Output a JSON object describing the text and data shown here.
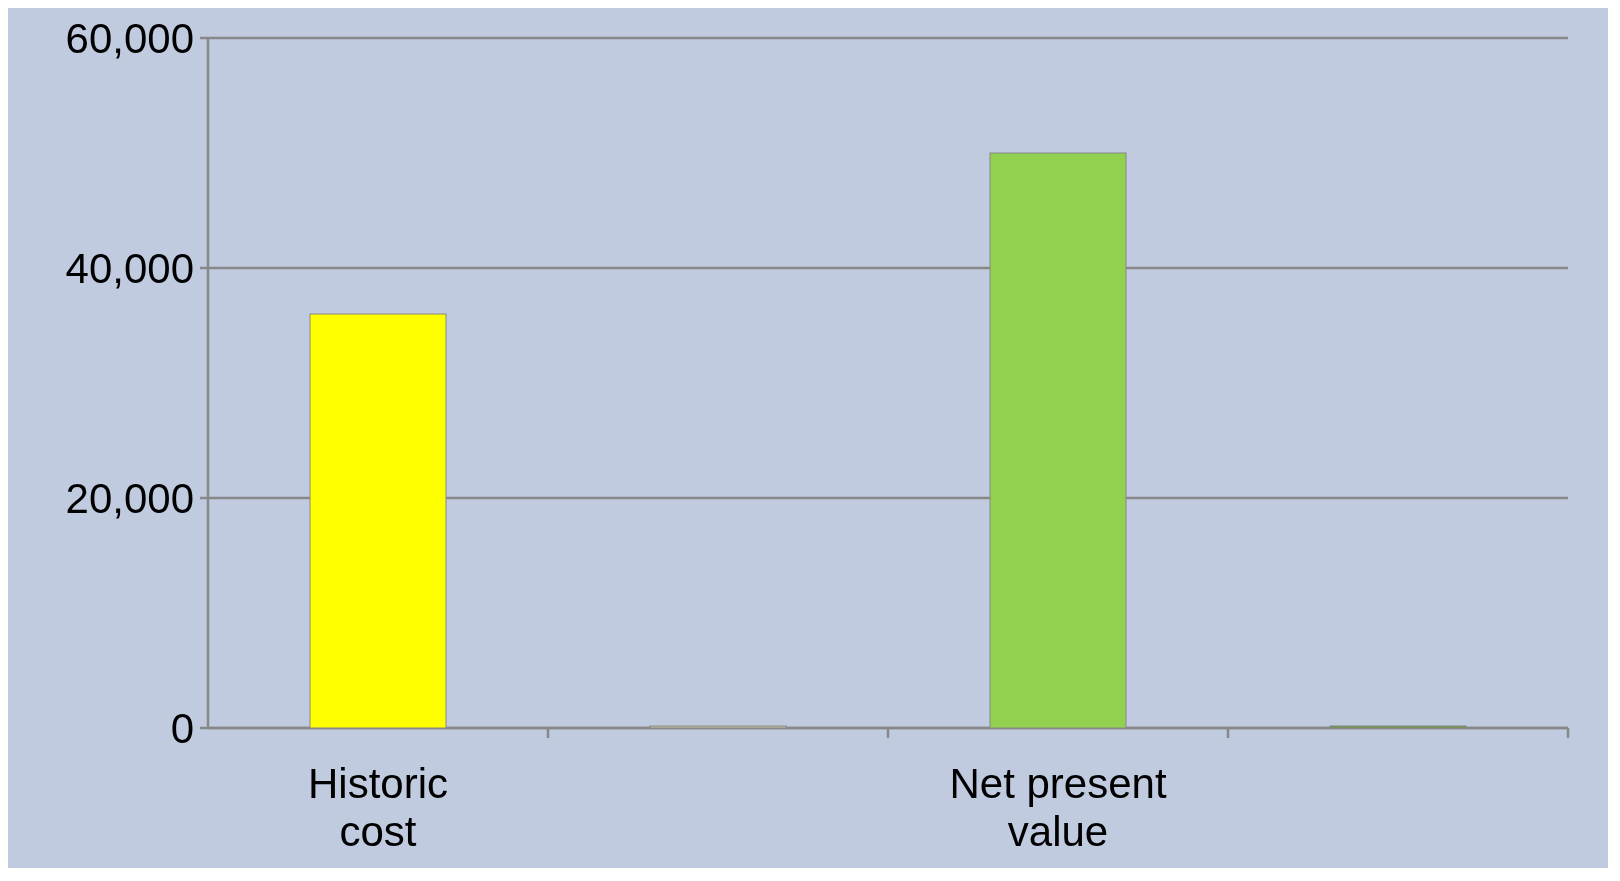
{
  "chart_data": {
    "type": "bar",
    "categories": [
      "Historic cost",
      null,
      "Net present value",
      null
    ],
    "values": [
      36000,
      0,
      50000,
      0
    ],
    "colors": [
      "#ffff00",
      "#c4c49e",
      "#92d050",
      "#6a9a3a"
    ],
    "ylim": [
      0,
      60000
    ],
    "yticks": [
      {
        "value": 0,
        "label": "0"
      },
      {
        "value": 20000,
        "label": "20,000"
      },
      {
        "value": 40000,
        "label": "40,000"
      },
      {
        "value": 60000,
        "label": "60,000"
      }
    ],
    "grid": "y"
  }
}
